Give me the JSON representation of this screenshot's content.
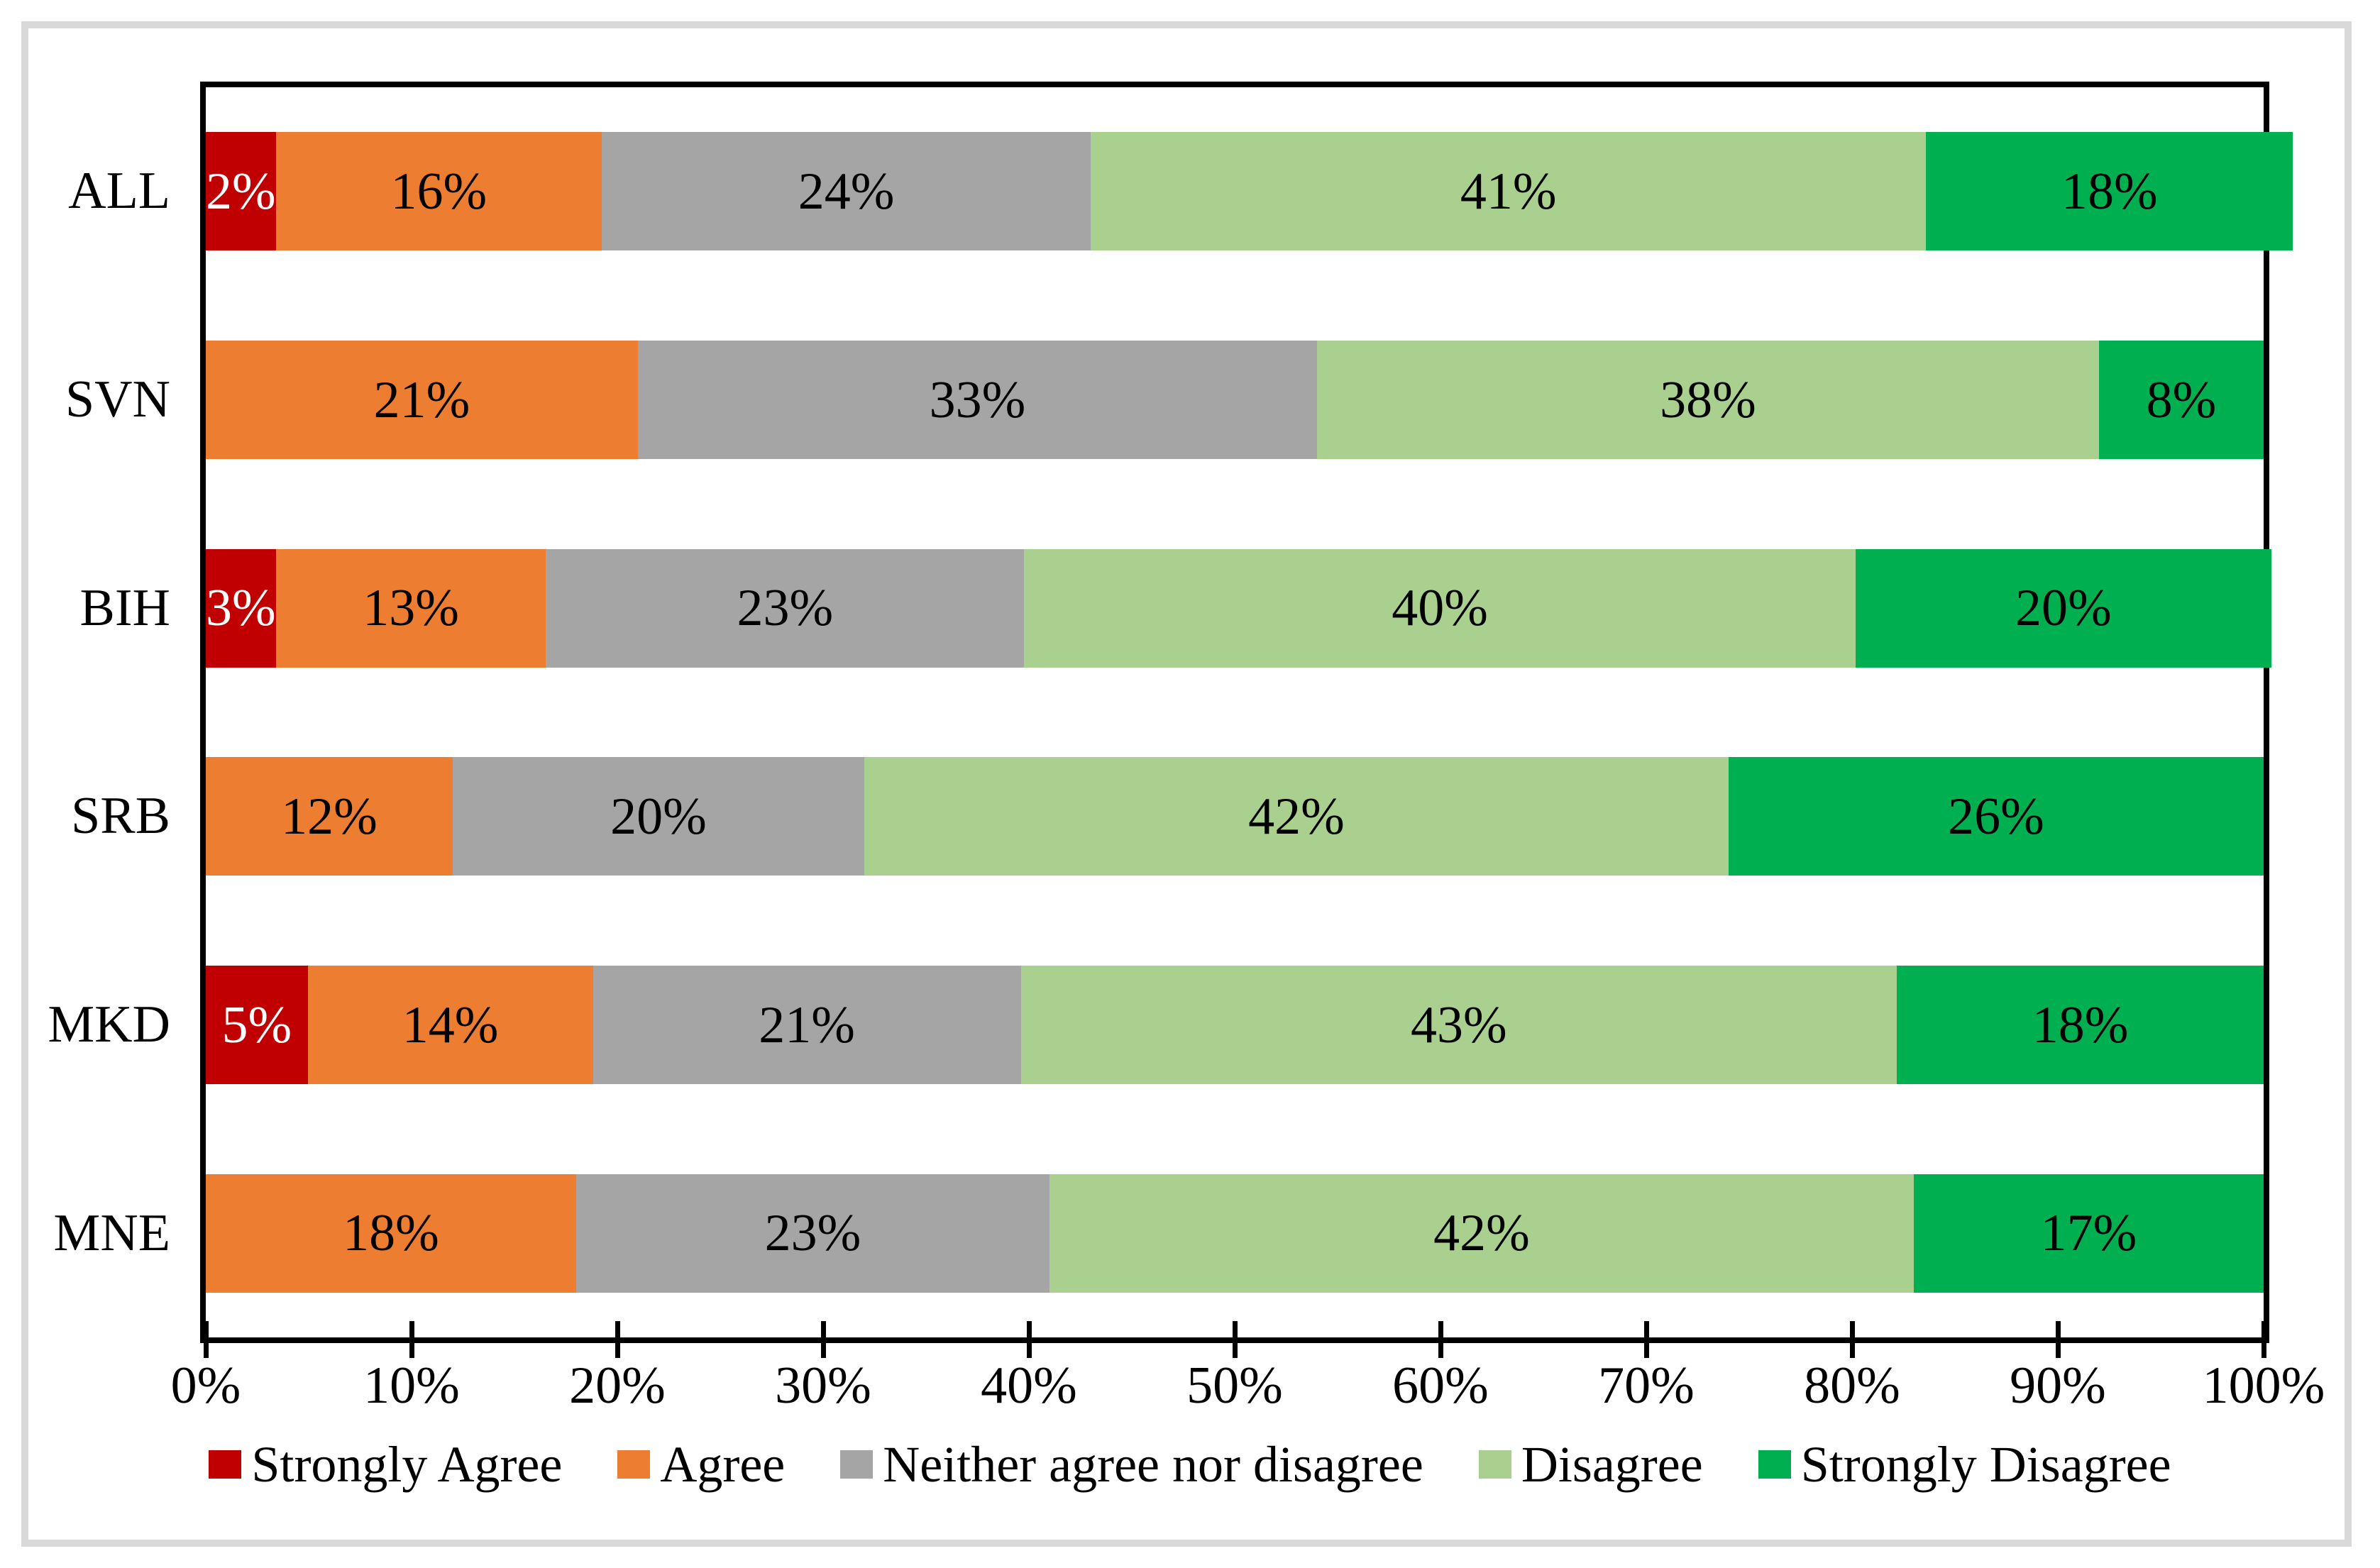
{
  "chart_data": {
    "type": "bar",
    "orientation": "horizontal-stacked",
    "title": "",
    "xlabel": "",
    "ylabel": "",
    "categories": [
      "ALL",
      "SVN",
      "BIH",
      "SRB",
      "MKD",
      "MNE"
    ],
    "series": [
      {
        "name": "Strongly Agree",
        "color": "#C00000",
        "label_color": "#FFFFFF",
        "values": [
          2,
          0,
          3,
          0,
          5,
          0
        ]
      },
      {
        "name": "Agree",
        "color": "#ED7D31",
        "label_color": "#000000",
        "values": [
          16,
          21,
          13,
          12,
          14,
          18
        ]
      },
      {
        "name": "Neither agree nor disagree",
        "color": "#A5A5A5",
        "label_color": "#000000",
        "values": [
          24,
          33,
          23,
          20,
          21,
          23
        ]
      },
      {
        "name": "Disagree",
        "color": "#A9D08E",
        "label_color": "#000000",
        "values": [
          41,
          38,
          40,
          42,
          43,
          42
        ]
      },
      {
        "name": "Strongly Disagree",
        "color": "#00B050",
        "label_color": "#000000",
        "values": [
          18,
          8,
          20,
          26,
          18,
          17
        ]
      }
    ],
    "value_suffix": "%",
    "x_axis": {
      "min": 0,
      "max": 100,
      "step": 10,
      "tick_labels": [
        "0%",
        "10%",
        "20%",
        "30%",
        "40%",
        "50%",
        "60%",
        "70%",
        "80%",
        "90%",
        "100%"
      ]
    },
    "legend_position": "bottom",
    "grid": false
  },
  "colors": {
    "background": "#FFFFFF",
    "plot_border": "#000000",
    "outer_frame": "#D9D9D9"
  }
}
